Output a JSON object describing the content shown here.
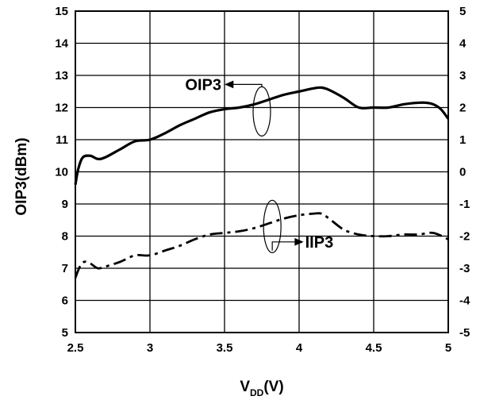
{
  "chart_data": {
    "type": "line",
    "title": "",
    "xlabel": "V",
    "xlabel_subscript": "DD",
    "xlabel_suffix": "(V)",
    "ylabel_left": "OIP3(dBm)",
    "ylabel_right": "",
    "xlim": [
      2.5,
      5
    ],
    "ylim_left": [
      5,
      15
    ],
    "ylim_right": [
      -5,
      5
    ],
    "grid": true,
    "x_ticks": [
      "2.5",
      "3",
      "3.5",
      "4",
      "4.5",
      "5"
    ],
    "y_left_ticks": [
      "5",
      "6",
      "7",
      "8",
      "9",
      "10",
      "11",
      "12",
      "13",
      "14",
      "15"
    ],
    "y_right_ticks": [
      "-5",
      "-4",
      "-3",
      "-2",
      "-1",
      "0",
      "1",
      "2",
      "3",
      "4",
      "5"
    ],
    "annotations": {
      "oip3": "OIP3",
      "iip3": "IIP3"
    },
    "series": [
      {
        "name": "OIP3",
        "axis": "left",
        "style": "solid",
        "x": [
          2.5,
          2.52,
          2.55,
          2.6,
          2.65,
          2.7,
          2.8,
          2.9,
          3.0,
          3.1,
          3.2,
          3.3,
          3.4,
          3.5,
          3.6,
          3.7,
          3.8,
          3.9,
          4.0,
          4.1,
          4.15,
          4.2,
          4.3,
          4.4,
          4.5,
          4.6,
          4.7,
          4.8,
          4.85,
          4.9,
          4.95,
          5.0
        ],
        "values": [
          9.6,
          10.1,
          10.45,
          10.5,
          10.4,
          10.45,
          10.7,
          10.95,
          11.0,
          11.2,
          11.45,
          11.65,
          11.85,
          11.95,
          12.0,
          12.1,
          12.25,
          12.4,
          12.5,
          12.6,
          12.62,
          12.55,
          12.3,
          12.0,
          12.0,
          12.0,
          12.1,
          12.15,
          12.15,
          12.1,
          11.95,
          11.65
        ]
      },
      {
        "name": "IIP3",
        "axis": "right",
        "style": "dashdot",
        "x": [
          2.5,
          2.53,
          2.56,
          2.6,
          2.65,
          2.7,
          2.8,
          2.9,
          3.0,
          3.1,
          3.2,
          3.3,
          3.4,
          3.5,
          3.6,
          3.7,
          3.8,
          3.9,
          4.0,
          4.1,
          4.15,
          4.2,
          4.3,
          4.4,
          4.5,
          4.6,
          4.7,
          4.8,
          4.9,
          5.0
        ],
        "values": [
          -3.3,
          -2.95,
          -2.8,
          -2.85,
          -3.0,
          -2.95,
          -2.8,
          -2.6,
          -2.6,
          -2.45,
          -2.3,
          -2.1,
          -1.95,
          -1.9,
          -1.85,
          -1.75,
          -1.6,
          -1.45,
          -1.35,
          -1.3,
          -1.3,
          -1.45,
          -1.8,
          -1.95,
          -2.0,
          -2.0,
          -1.95,
          -1.95,
          -1.9,
          -2.1
        ]
      }
    ]
  }
}
